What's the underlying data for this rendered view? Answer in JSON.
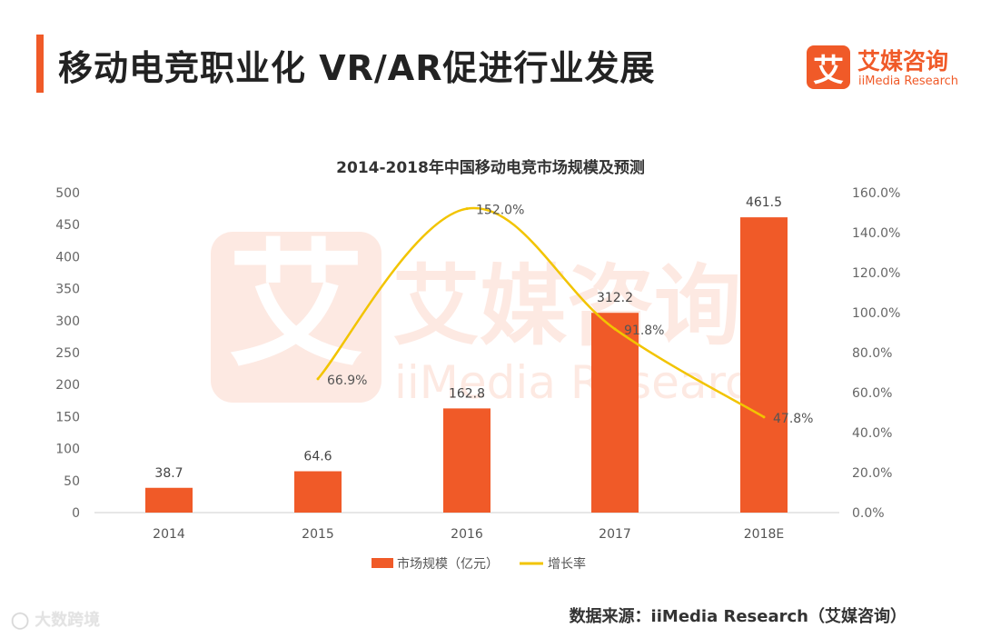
{
  "header": {
    "title": "移动电竞职业化 VR/AR促进行业发展",
    "logo_mark": "艾",
    "logo_cn": "艾媒咨询",
    "logo_en": "iiMedia Research"
  },
  "chart_data": {
    "type": "bar+line",
    "title": "2014-2018年中国移动电竞市场规模及预测",
    "categories": [
      "2014",
      "2015",
      "2016",
      "2017",
      "2018E"
    ],
    "series": [
      {
        "name": "市场规模（亿元）",
        "kind": "bar",
        "axis": "left",
        "values": [
          38.7,
          64.6,
          162.8,
          312.2,
          461.5
        ],
        "labels": [
          "38.7",
          "64.6",
          "162.8",
          "312.2",
          "461.5"
        ],
        "color": "#f05a28"
      },
      {
        "name": "增长率",
        "kind": "line",
        "axis": "right",
        "values": [
          null,
          66.9,
          152.0,
          91.8,
          47.8
        ],
        "labels": [
          "",
          "66.9%",
          "152.0%",
          "91.8%",
          "47.8%"
        ],
        "color": "#f2c400"
      }
    ],
    "y_left": {
      "range": [
        0,
        500
      ],
      "ticks": [
        "0",
        "50",
        "100",
        "150",
        "200",
        "250",
        "300",
        "350",
        "400",
        "450",
        "500"
      ]
    },
    "y_right": {
      "range": [
        0,
        160
      ],
      "ticks": [
        "0.0%",
        "20.0%",
        "40.0%",
        "60.0%",
        "80.0%",
        "100.0%",
        "120.0%",
        "140.0%",
        "160.0%"
      ]
    },
    "grid": false,
    "legend_position": "bottom"
  },
  "watermark": {
    "mark": "艾",
    "cn": "艾媒咨询",
    "en": "iiMedia Research"
  },
  "source": "数据来源：iiMedia Research（艾媒咨询）",
  "corner_watermark": "大数跨境"
}
